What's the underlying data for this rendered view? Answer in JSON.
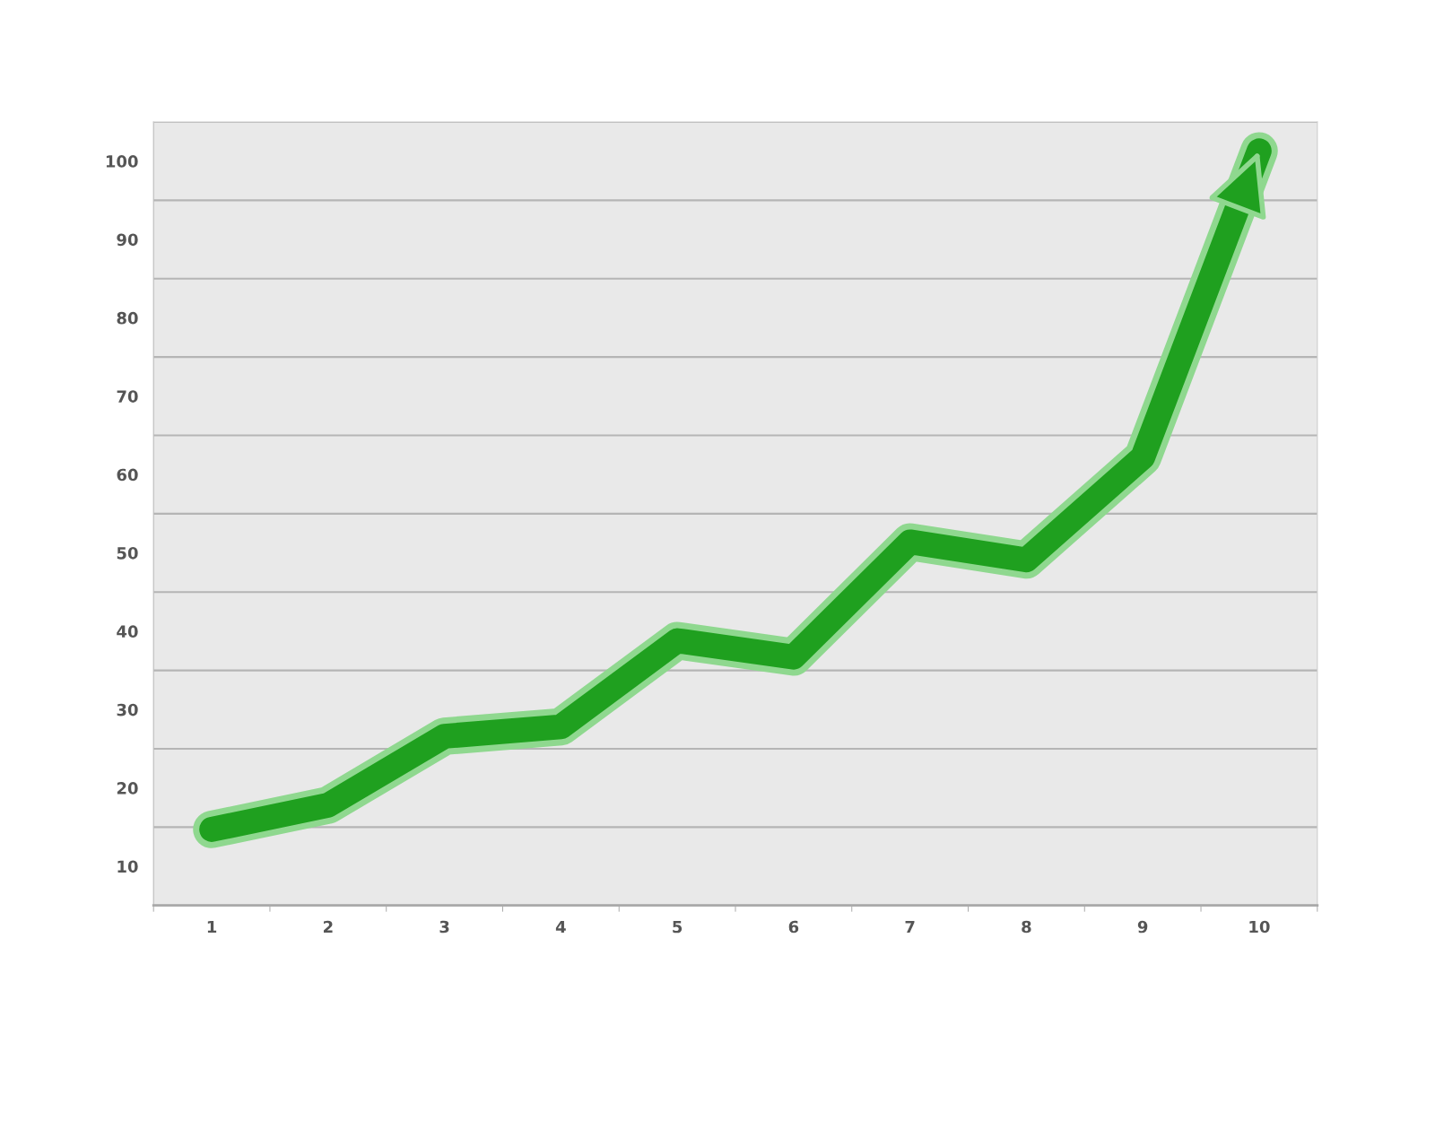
{
  "chart_data": {
    "type": "line",
    "categories": [
      "1",
      "2",
      "3",
      "4",
      "5",
      "6",
      "7",
      "8",
      "9",
      "10"
    ],
    "series": [
      {
        "color": "#1fa01f",
        "values": [
          14.7,
          17.8,
          26.6,
          27.8,
          38.8,
          36.7,
          51.4,
          49.1,
          62.2,
          101.3
        ]
      }
    ],
    "ylim": [
      5,
      105
    ],
    "yticks": [
      10,
      20,
      30,
      40,
      50,
      60,
      70,
      80,
      90,
      100
    ],
    "grid": "y",
    "line_style": "solid",
    "legend": false
  }
}
